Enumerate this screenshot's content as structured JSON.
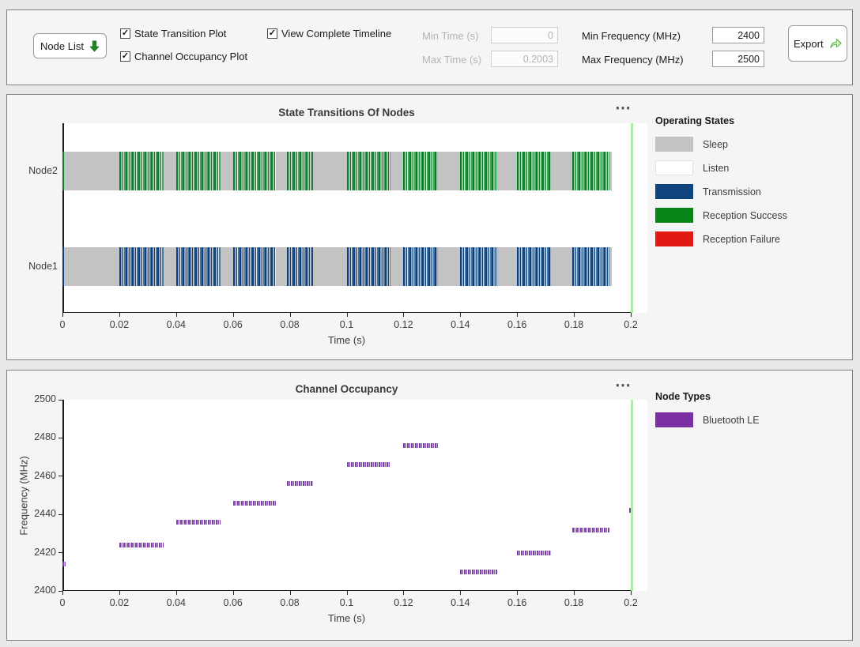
{
  "toolbar": {
    "node_list": {
      "label": "Node List"
    },
    "checkboxes": [
      {
        "label": "State Transition Plot",
        "checked": true
      },
      {
        "label": "Channel Occupancy Plot",
        "checked": true
      },
      {
        "label": "View Complete Timeline",
        "checked": true
      }
    ],
    "time_fields": [
      {
        "label": "Min Time (s)",
        "value": "0",
        "disabled": true
      },
      {
        "label": "Max Time (s)",
        "value": "0.2003",
        "disabled": true
      }
    ],
    "freq_fields": [
      {
        "label": "Min Frequency (MHz)",
        "value": "2400",
        "disabled": false
      },
      {
        "label": "Max Frequency (MHz)",
        "value": "2500",
        "disabled": false
      }
    ],
    "export": {
      "label": "Export"
    }
  },
  "icons": {
    "node_list_arrow": "green-down-arrow",
    "export_arrow": "green-curved-share-arrow",
    "chart_menu": "⋯",
    "checkbox_check": "✓"
  },
  "colors": {
    "sleep": "#c3c3c3",
    "listen": "#ffffff",
    "transmission": "#10447e",
    "reception_success": "#078517",
    "reception_failure": "#e01a12",
    "bluetooth_le": "#7b2fa2",
    "time_cursor": "#b4e9ae",
    "button_arrow_green": "#1e8a1e"
  },
  "chart_data": [
    {
      "type": "timeline",
      "title": "State Transitions Of Nodes",
      "xlabel": "Time (s)",
      "xlim": [
        0,
        0.2
      ],
      "x_tick_labels": [
        "0",
        "0.02",
        "0.04",
        "0.06",
        "0.08",
        "0.1",
        "0.12",
        "0.14",
        "0.16",
        "0.18",
        "0.2"
      ],
      "nodes": [
        {
          "name": "Node2",
          "base_state": "Sleep",
          "burst_state": "Reception Success",
          "pattern": "green"
        },
        {
          "name": "Node1",
          "base_state": "Sleep",
          "burst_state": "Transmission",
          "pattern": "blue"
        }
      ],
      "timeline_span": [
        0,
        0.1933
      ],
      "activity_bursts": [
        [
          0.02,
          0.0355
        ],
        [
          0.04,
          0.0555
        ],
        [
          0.06,
          0.075
        ],
        [
          0.079,
          0.0882
        ],
        [
          0.1,
          0.1155
        ],
        [
          0.12,
          0.132
        ],
        [
          0.14,
          0.153
        ],
        [
          0.16,
          0.172
        ],
        [
          0.1795,
          0.1925
        ]
      ],
      "cursor_time": 0.2003,
      "legend": {
        "title": "Operating States",
        "items": [
          {
            "label": "Sleep",
            "color": "#c3c3c3"
          },
          {
            "label": "Listen",
            "color": "#ffffff"
          },
          {
            "label": "Transmission",
            "color": "#10447e"
          },
          {
            "label": "Reception Success",
            "color": "#078517"
          },
          {
            "label": "Reception Failure",
            "color": "#e01a12"
          }
        ]
      }
    },
    {
      "type": "scatter",
      "title": "Channel Occupancy",
      "xlabel": "Time (s)",
      "ylabel": "Frequency (MHz)",
      "xlim": [
        0,
        0.2
      ],
      "ylim": [
        2400,
        2500
      ],
      "x_tick_labels": [
        "0",
        "0.02",
        "0.04",
        "0.06",
        "0.08",
        "0.1",
        "0.12",
        "0.14",
        "0.16",
        "0.18",
        "0.2"
      ],
      "y_tick_labels": [
        "2400",
        "2420",
        "2440",
        "2460",
        "2480",
        "2500"
      ],
      "segments": [
        {
          "start": 0.0,
          "end": 0.0012,
          "freq": 2414
        },
        {
          "start": 0.02,
          "end": 0.0355,
          "freq": 2424
        },
        {
          "start": 0.04,
          "end": 0.0555,
          "freq": 2436
        },
        {
          "start": 0.06,
          "end": 0.075,
          "freq": 2446
        },
        {
          "start": 0.079,
          "end": 0.0882,
          "freq": 2456
        },
        {
          "start": 0.1,
          "end": 0.1155,
          "freq": 2466
        },
        {
          "start": 0.12,
          "end": 0.132,
          "freq": 2476
        },
        {
          "start": 0.14,
          "end": 0.153,
          "freq": 2410
        },
        {
          "start": 0.16,
          "end": 0.172,
          "freq": 2420
        },
        {
          "start": 0.1795,
          "end": 0.1925,
          "freq": 2432
        },
        {
          "start": 0.1995,
          "end": 0.2003,
          "freq": 2442
        }
      ],
      "cursor_time": 0.2003,
      "legend": {
        "title": "Node Types",
        "items": [
          {
            "label": "Bluetooth LE",
            "color": "#7b2fa2"
          }
        ]
      }
    }
  ]
}
